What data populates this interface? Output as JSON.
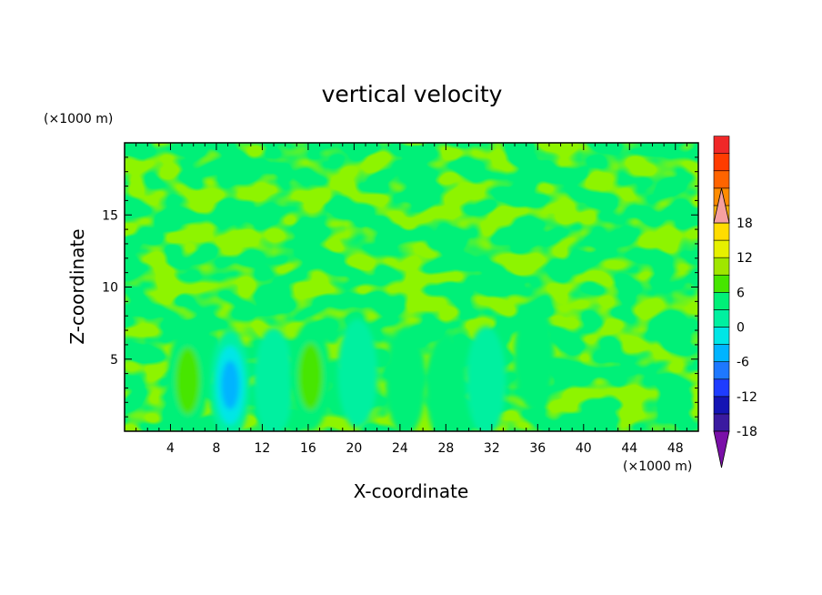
{
  "chart_data": {
    "type": "heatmap",
    "title": "vertical velocity",
    "xlabel": "X-coordinate",
    "ylabel": "Z-coordinate",
    "x_unit": "(×1000 m)",
    "y_unit": "(×1000 m)",
    "xlim": [
      0,
      50
    ],
    "ylim": [
      0,
      20
    ],
    "x_ticks": [
      4,
      8,
      12,
      16,
      20,
      24,
      28,
      32,
      36,
      40,
      44,
      48
    ],
    "y_ticks": [
      5,
      10,
      15
    ],
    "colorbar": {
      "min": -21,
      "max": 21,
      "step": 3,
      "extend": "both",
      "tick_labels": [
        18,
        12,
        6,
        0,
        -6,
        -12,
        -18
      ],
      "colors": [
        "#7a0fa8",
        "#3a1aa0",
        "#1414b4",
        "#1e3cff",
        "#1e78ff",
        "#00b4ff",
        "#00e6e6",
        "#00f0a0",
        "#00f078",
        "#46e600",
        "#a0e600",
        "#e6f000",
        "#ffdc00",
        "#ffb400",
        "#ff8c00",
        "#ff6400",
        "#ff3c00",
        "#f02828",
        "#f5a0a0"
      ]
    },
    "features": [
      {
        "label": "updraft",
        "x": 5.5,
        "z": 3.5,
        "value": 8
      },
      {
        "label": "downdraft",
        "x": 9.2,
        "z": 3.2,
        "value": -9
      },
      {
        "label": "downdraft",
        "x": 13,
        "z": 3.4,
        "value": -4
      },
      {
        "label": "updraft",
        "x": 16.2,
        "z": 3.8,
        "value": 8
      },
      {
        "label": "downdraft",
        "x": 20.3,
        "z": 4.0,
        "value": -5
      },
      {
        "label": "updraft",
        "x": 24.5,
        "z": 3.5,
        "value": 3
      },
      {
        "label": "updraft",
        "x": 28.0,
        "z": 3.0,
        "value": 4
      },
      {
        "label": "downdraft",
        "x": 31.5,
        "z": 3.5,
        "value": -2
      },
      {
        "label": "updraft",
        "x": 35.7,
        "z": 5.2,
        "value": 3
      }
    ]
  }
}
